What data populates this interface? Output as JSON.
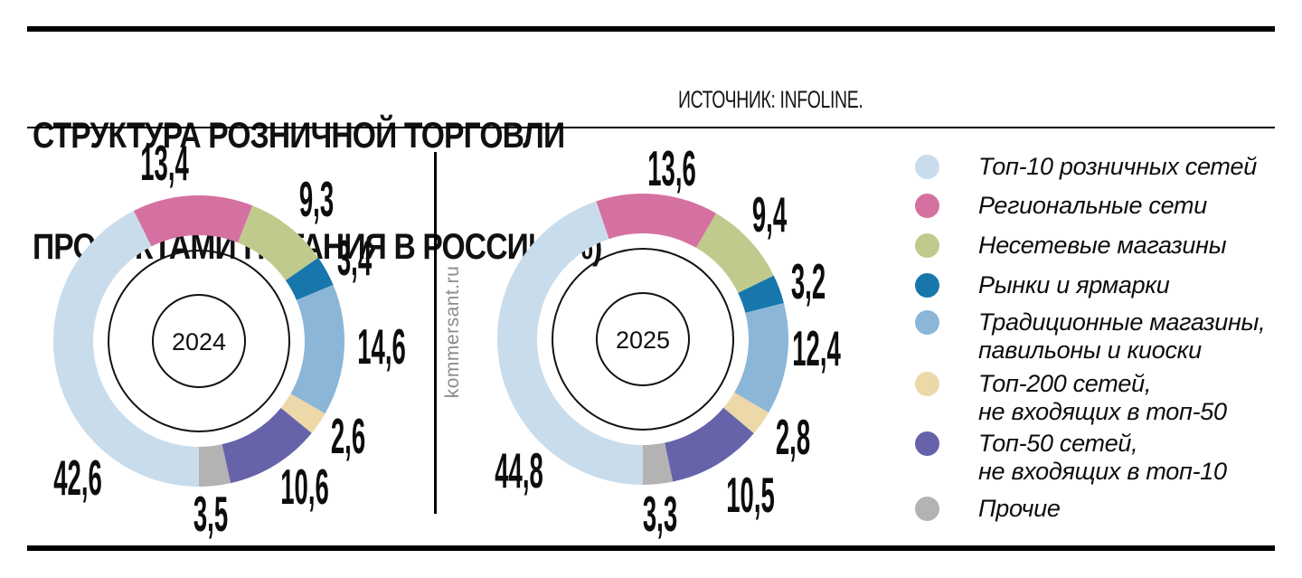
{
  "header": {
    "title_line1": "СТРУКТУРА РОЗНИЧНОЙ ТОРГОВЛИ",
    "title_line2": "ПРОДУКТАМИ ПИТАНИЯ В РОССИИ (%)",
    "source": "ИСТОЧНИК: INFOLINE."
  },
  "watermark": "kommersant.ru",
  "chart_data": {
    "type": "donut",
    "title": "Структура розничной торговли продуктами питания в России (%)",
    "unit": "%",
    "legend_position": "right",
    "decimal_separator": ",",
    "categories": [
      "Топ-10 розничных сетей",
      "Региональные сети",
      "Несетевые магазины",
      "Рынки и ярмарки",
      "Традиционные магазины, павильоны и киоски",
      "Топ-200 сетей, не входящих в топ-50",
      "Топ-50 сетей, не входящих в топ-10",
      "Прочие"
    ],
    "colors": [
      "#c9dcec",
      "#d571a1",
      "#c1ca8d",
      "#1777ac",
      "#8bb6d8",
      "#edd8a9",
      "#6663ab",
      "#b4b2b3"
    ],
    "series": [
      {
        "name": "2024",
        "values": [
          42.6,
          13.4,
          9.3,
          3.4,
          14.6,
          2.6,
          10.6,
          3.5
        ]
      },
      {
        "name": "2025",
        "values": [
          44.8,
          13.6,
          9.4,
          3.2,
          12.4,
          2.8,
          10.5,
          3.3
        ]
      }
    ]
  },
  "legend": {
    "items": [
      {
        "lines": [
          "Топ-10 розничных сетей"
        ],
        "color": "#c9dcec"
      },
      {
        "lines": [
          "Региональные сети"
        ],
        "color": "#d571a1"
      },
      {
        "lines": [
          "Несетевые магазины"
        ],
        "color": "#c1ca8d"
      },
      {
        "lines": [
          "Рынки и ярмарки"
        ],
        "color": "#1777ac"
      },
      {
        "lines": [
          "Традиционные магазины,",
          "павильоны и киоски"
        ],
        "color": "#8bb6d8"
      },
      {
        "lines": [
          "Топ-200 сетей,",
          "не входящих в топ-50"
        ],
        "color": "#edd8a9"
      },
      {
        "lines": [
          "Топ-50 сетей,",
          "не входящих в топ-10"
        ],
        "color": "#6663ab"
      },
      {
        "lines": [
          "Прочие"
        ],
        "color": "#b4b2b3"
      }
    ]
  }
}
